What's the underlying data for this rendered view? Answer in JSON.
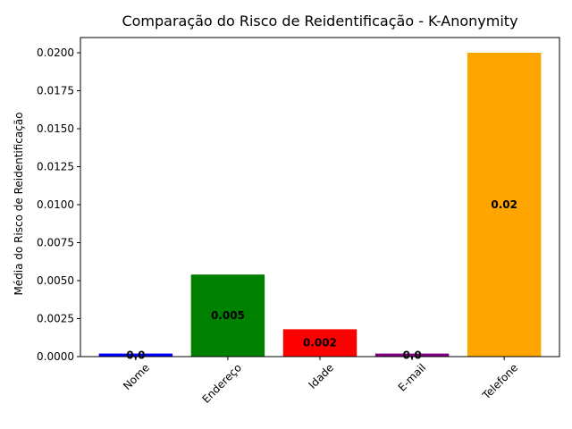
{
  "chart_data": {
    "type": "bar",
    "title": "Comparação do Risco de Reidentificação - K-Anonymity",
    "xlabel": "",
    "ylabel": "Média do Risco de Reidentificação",
    "categories": [
      "Nome",
      "Endereço",
      "Idade",
      "E-mail",
      "Telefone"
    ],
    "values": [
      0.0002,
      0.0054,
      0.0018,
      0.0002,
      0.02
    ],
    "data_labels": [
      "0.0",
      "0.005",
      "0.002",
      "0.0",
      "0.02"
    ],
    "colors": [
      "#0000ff",
      "#008000",
      "#ff0000",
      "#800080",
      "#ffa500"
    ],
    "ylim": [
      0,
      0.021
    ],
    "yticks": [
      0.0,
      0.0025,
      0.005,
      0.0075,
      0.01,
      0.0125,
      0.015,
      0.0175,
      0.02
    ],
    "ytick_labels": [
      "0.0000",
      "0.0025",
      "0.0050",
      "0.0075",
      "0.0100",
      "0.0125",
      "0.0150",
      "0.0175",
      "0.0200"
    ],
    "grid": false,
    "legend": "none"
  }
}
